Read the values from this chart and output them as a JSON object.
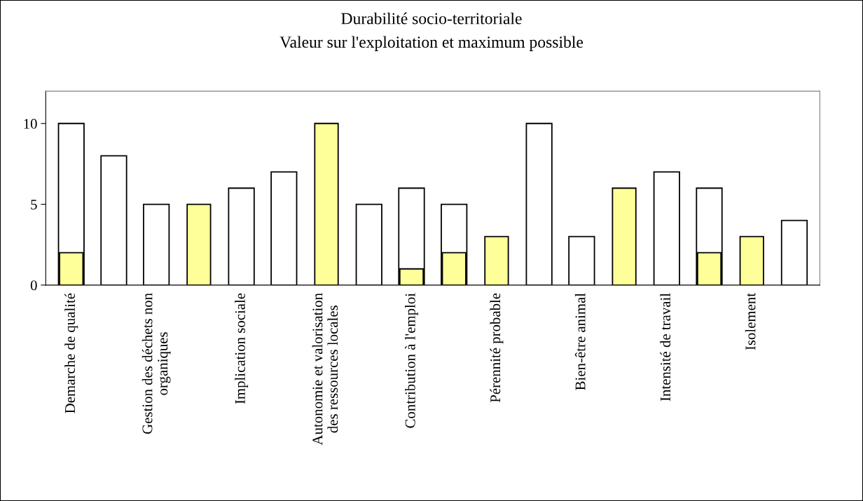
{
  "chart_data": {
    "type": "bar",
    "title": "Durabilité socio-territoriale",
    "subtitle": "Valeur sur l'exploitation et maximum possible",
    "categories": [
      "Demarche de qualité",
      null,
      "Gestion des déchets non\norganiques",
      null,
      "Implication sociale",
      null,
      "Autonomie et valorisation\ndes ressources locales",
      null,
      "Contribution à l'emploi",
      null,
      "Pérennité probable",
      null,
      "Bien-être animal",
      null,
      "Intensité de travail",
      null,
      "Isolement",
      null
    ],
    "series": [
      {
        "color": "#ffffff",
        "values": [
          10,
          8,
          5,
          null,
          6,
          7,
          null,
          5,
          6,
          5,
          null,
          10,
          3,
          null,
          7,
          6,
          null,
          4
        ]
      },
      {
        "color": "#ffff99",
        "values": [
          2,
          0,
          0,
          5,
          0,
          0,
          10,
          0,
          1,
          2,
          3,
          0,
          0,
          6,
          0,
          2,
          3,
          0
        ]
      }
    ],
    "ylim": [
      0,
      12
    ],
    "yticks": [
      0,
      5,
      10
    ],
    "grid": false,
    "legend": false
  }
}
